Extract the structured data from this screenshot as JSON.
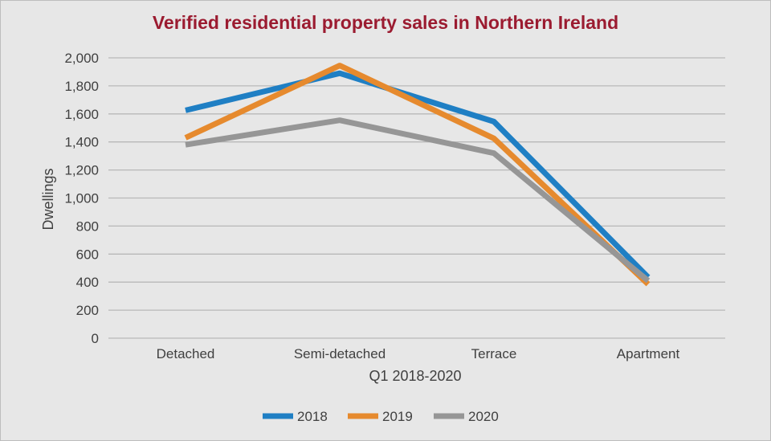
{
  "chart_data": {
    "type": "line",
    "title": "Verified residential property sales in Northern Ireland",
    "xlabel": "Q1 2018-2020",
    "ylabel": "Dwellings",
    "categories": [
      "Detached",
      "Semi-detached",
      "Terrace",
      "Apartment"
    ],
    "ylim": [
      0,
      2000
    ],
    "yticks": [
      0,
      200,
      400,
      600,
      800,
      1000,
      1200,
      1400,
      1600,
      1800,
      2000
    ],
    "ytick_labels": [
      "0",
      "200",
      "400",
      "600",
      "800",
      "1,000",
      "1,200",
      "1,400",
      "1,600",
      "1,800",
      "2,000"
    ],
    "grid": "horizontal",
    "legend": "bottom",
    "series": [
      {
        "name": "2018",
        "color": "#1f7fc4",
        "values": [
          1625,
          1890,
          1545,
          435
        ]
      },
      {
        "name": "2019",
        "color": "#e68a2e",
        "values": [
          1430,
          1945,
          1425,
          385
        ]
      },
      {
        "name": "2020",
        "color": "#969696",
        "values": [
          1380,
          1555,
          1320,
          410
        ]
      }
    ]
  }
}
